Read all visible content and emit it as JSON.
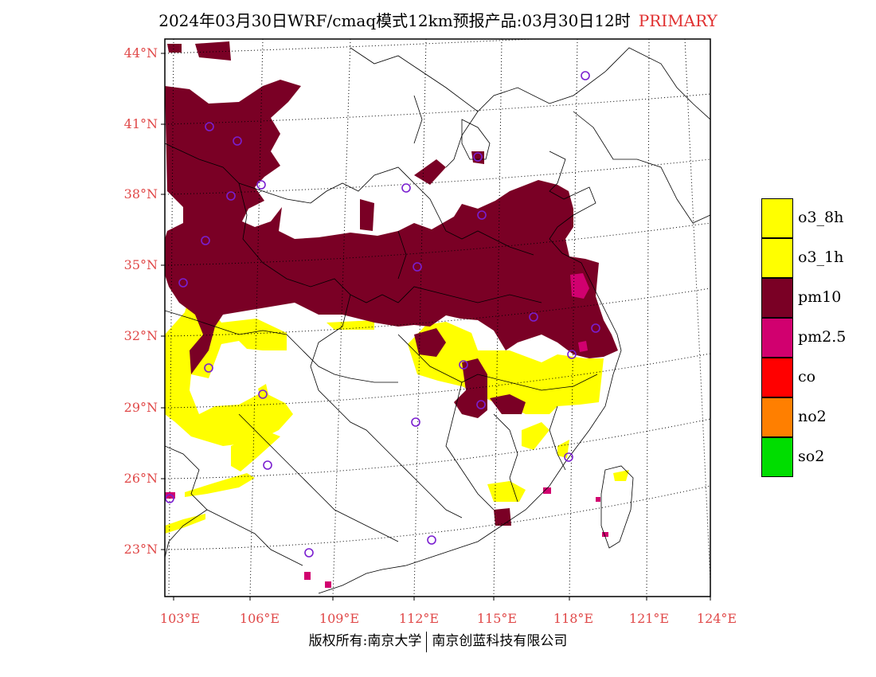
{
  "title": {
    "main": "2024年03月30日WRF/cmaq模式12km预报产品:03月30日12时",
    "tag": "PRIMARY"
  },
  "colors": {
    "pm10": "#7a0025",
    "pm25": "#d1006f",
    "o3": "#ffff00",
    "co": "#ff0000",
    "no2": "#ff7f00",
    "so2": "#00dd00",
    "label_red": "#e04848",
    "station": "#7a1fd0"
  },
  "axes": {
    "lat_labels": [
      "44°N",
      "41°N",
      "38°N",
      "35°N",
      "32°N",
      "29°N",
      "26°N",
      "23°N"
    ],
    "lon_labels": [
      "103°E",
      "106°E",
      "109°E",
      "112°E",
      "115°E",
      "118°E",
      "121°E",
      "124°E"
    ]
  },
  "legend": [
    {
      "label": "o3_8h",
      "color": "#ffff00"
    },
    {
      "label": "o3_1h",
      "color": "#ffff00"
    },
    {
      "label": "pm10",
      "color": "#7a0025"
    },
    {
      "label": "pm2.5",
      "color": "#d1006f"
    },
    {
      "label": "co",
      "color": "#ff0000"
    },
    {
      "label": "no2",
      "color": "#ff7f00"
    },
    {
      "label": "so2",
      "color": "#00dd00"
    }
  ],
  "copyright": {
    "left": "版权所有:南京大学",
    "right": "南京创蓝科技有限公司"
  }
}
